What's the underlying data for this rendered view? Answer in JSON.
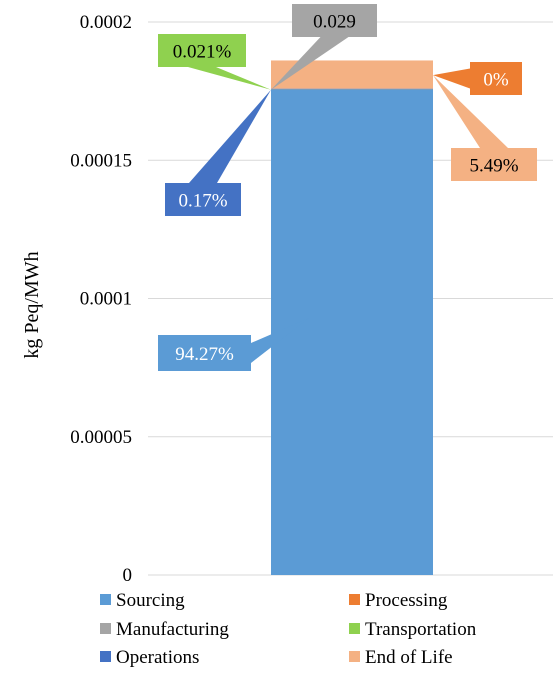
{
  "chart_data": {
    "type": "bar",
    "stacked": true,
    "categories": [
      ""
    ],
    "series": [
      {
        "name": "Sourcing",
        "values": [
          0.0001755
        ],
        "color": "#5B9BD5"
      },
      {
        "name": "Processing",
        "values": [
          0
        ],
        "color": "#ED7D31"
      },
      {
        "name": "Manufacturing",
        "values": [
          5e-08
        ],
        "color": "#A5A5A5"
      },
      {
        "name": "Transportation",
        "values": [
          4e-08
        ],
        "color": "#8FD14F"
      },
      {
        "name": "Operations",
        "values": [
          3e-07
        ],
        "color": "#4472C4"
      },
      {
        "name": "End of Life",
        "values": [
          1.02e-05
        ],
        "color": "#F4B183"
      }
    ],
    "ylabel": "kg Peq/MWh",
    "xlabel": "",
    "title": "",
    "ylim": [
      0,
      0.0002
    ],
    "yticks": [
      "0",
      "0.00005",
      "0.0001",
      "0.00015",
      "0.0002"
    ],
    "grid": true,
    "legend_position": "bottom",
    "data_labels": [
      {
        "series": "Sourcing",
        "text": "94.27%"
      },
      {
        "series": "Operations",
        "text": "0.17%"
      },
      {
        "series": "Transportation",
        "text": "0.021%"
      },
      {
        "series": "Manufacturing",
        "text": "0.029"
      },
      {
        "series": "Processing",
        "text": "0%"
      },
      {
        "series": "End of Life",
        "text": "5.49%"
      }
    ],
    "colors": {
      "grid": "#D9D9D9",
      "label_text_light": "#FFFFFF",
      "label_text_dark": "#000000"
    }
  }
}
